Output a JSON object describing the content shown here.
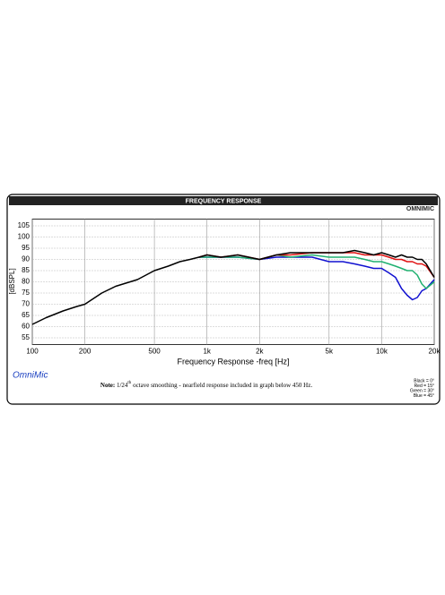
{
  "chart_data": {
    "type": "line",
    "title": "FREQUENCY RESPONSE",
    "logo": "OMNIMIC",
    "brand": "OmniMic",
    "xlabel": "Frequency Response -freq [Hz]",
    "ylabel": "[dBSPL]",
    "note": {
      "label": "Note:",
      "pre": " 1/24",
      "sup": "th",
      "post": " octave smoothing - nearfield response included in graph below 450 Hz."
    },
    "xscale": "log",
    "grid": true,
    "legend_position": "lower right",
    "xlim": [
      100,
      20000
    ],
    "ylim": [
      52,
      108
    ],
    "xticks": [
      100,
      200,
      500,
      {
        "value": 1000,
        "label": "1k"
      },
      {
        "value": 2000,
        "label": "2k"
      },
      {
        "value": 5000,
        "label": "5k"
      },
      {
        "value": 10000,
        "label": "10k"
      },
      {
        "value": 20000,
        "label": "20k"
      }
    ],
    "yticks": [
      55,
      60,
      65,
      70,
      75,
      80,
      85,
      90,
      95,
      100,
      105
    ],
    "x": [
      100,
      120,
      150,
      180,
      200,
      250,
      300,
      400,
      500,
      600,
      700,
      800,
      900,
      1000,
      1200,
      1500,
      2000,
      2500,
      3000,
      4000,
      5000,
      6000,
      7000,
      8000,
      9000,
      10000,
      11000,
      12000,
      13000,
      14000,
      15000,
      16000,
      17000,
      18000,
      20000
    ],
    "series": [
      {
        "name": "Black = 0°",
        "color": "#000000",
        "values": [
          61,
          64,
          67,
          69,
          70,
          75,
          78,
          81,
          85,
          87,
          89,
          90,
          91,
          92,
          91,
          92,
          90,
          92,
          93,
          93,
          93,
          93,
          94,
          93,
          92,
          93,
          92,
          91,
          92,
          91,
          91,
          90,
          90,
          88,
          82
        ]
      },
      {
        "name": "Red = 15°",
        "color": "#e01010",
        "values": [
          null,
          null,
          null,
          null,
          null,
          null,
          null,
          null,
          null,
          null,
          null,
          null,
          91,
          92,
          91,
          92,
          90,
          92,
          92,
          93,
          93,
          93,
          93,
          92,
          92,
          92,
          91,
          90,
          90,
          89,
          89,
          88,
          88,
          87,
          82
        ]
      },
      {
        "name": "Green = 30°",
        "color": "#20b070",
        "values": [
          null,
          null,
          null,
          null,
          null,
          null,
          null,
          null,
          null,
          null,
          null,
          null,
          91,
          91,
          91,
          91,
          90,
          92,
          91,
          92,
          91,
          91,
          91,
          90,
          89,
          89,
          88,
          87,
          86,
          85,
          85,
          83,
          79,
          77,
          80
        ]
      },
      {
        "name": "Blue = 45°",
        "color": "#1010d0",
        "values": [
          null,
          null,
          null,
          null,
          null,
          null,
          null,
          null,
          null,
          null,
          null,
          null,
          91,
          91,
          91,
          91,
          90,
          91,
          91,
          91,
          89,
          89,
          88,
          87,
          86,
          86,
          84,
          82,
          77,
          74,
          72,
          73,
          76,
          77,
          81
        ]
      }
    ]
  }
}
